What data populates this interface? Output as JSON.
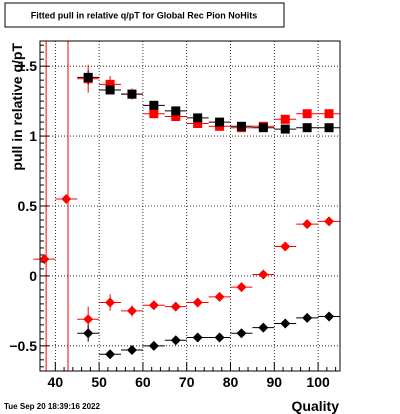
{
  "chart_data": {
    "type": "scatter",
    "title": "Fitted pull in relative q/pT for Global Rec Pion NoHits",
    "xlabel": "Quality",
    "ylabel": "pull in relative q/pT",
    "xlim": [
      36.5,
      105
    ],
    "ylim": [
      -0.68,
      1.68
    ],
    "xticks": [
      40,
      50,
      60,
      70,
      80,
      90,
      100
    ],
    "yticks": [
      -0.5,
      0,
      0.5,
      1,
      1.5
    ],
    "ytick_labels": [
      "−0.5",
      "0",
      "0.5",
      "1",
      "1.5"
    ],
    "grid": true,
    "legend": "none",
    "colors": {
      "red": "#ff0000",
      "black": "#000000"
    },
    "vertical_lines": [
      {
        "x": 37.9,
        "color": "#ff0000"
      },
      {
        "x": 42.9,
        "color": "#ff0000"
      }
    ],
    "series": [
      {
        "marker": "diamond",
        "color": "#ff0000",
        "points": [
          {
            "x": 37.5,
            "y": 0.12,
            "xerr": 2.5,
            "yerr": 0
          },
          {
            "x": 42.5,
            "y": 0.55,
            "xerr": 2.5,
            "yerr": 0
          },
          {
            "x": 47.5,
            "y": -0.31,
            "xerr": 2.5,
            "yerr": 0.09
          },
          {
            "x": 52.5,
            "y": -0.19,
            "xerr": 2.5,
            "yerr": 0.06
          },
          {
            "x": 57.5,
            "y": -0.25,
            "xerr": 2.5,
            "yerr": 0.04
          },
          {
            "x": 62.5,
            "y": -0.21,
            "xerr": 2.5,
            "yerr": 0.02
          },
          {
            "x": 67.5,
            "y": -0.22,
            "xerr": 2.5,
            "yerr": 0.02
          },
          {
            "x": 72.5,
            "y": -0.19,
            "xerr": 2.5,
            "yerr": 0.01
          },
          {
            "x": 77.5,
            "y": -0.15,
            "xerr": 2.5,
            "yerr": 0.01
          },
          {
            "x": 82.5,
            "y": -0.08,
            "xerr": 2.5,
            "yerr": 0.01
          },
          {
            "x": 87.5,
            "y": 0.01,
            "xerr": 2.5,
            "yerr": 0.01
          },
          {
            "x": 92.5,
            "y": 0.21,
            "xerr": 2.5,
            "yerr": 0.01
          },
          {
            "x": 97.5,
            "y": 0.37,
            "xerr": 2.5,
            "yerr": 0.01
          },
          {
            "x": 102.5,
            "y": 0.39,
            "xerr": 2.5,
            "yerr": 0.01
          }
        ]
      },
      {
        "marker": "diamond",
        "color": "#000000",
        "points": [
          {
            "x": 47.5,
            "y": -0.41,
            "xerr": 2.5,
            "yerr": 0.06
          },
          {
            "x": 52.5,
            "y": -0.56,
            "xerr": 2.5,
            "yerr": 0.03
          },
          {
            "x": 57.5,
            "y": -0.53,
            "xerr": 2.5,
            "yerr": 0.02
          },
          {
            "x": 62.5,
            "y": -0.5,
            "xerr": 2.5,
            "yerr": 0.02
          },
          {
            "x": 67.5,
            "y": -0.46,
            "xerr": 2.5,
            "yerr": 0.01
          },
          {
            "x": 72.5,
            "y": -0.44,
            "xerr": 2.5,
            "yerr": 0.01
          },
          {
            "x": 77.5,
            "y": -0.44,
            "xerr": 2.5,
            "yerr": 0.01
          },
          {
            "x": 82.5,
            "y": -0.41,
            "xerr": 2.5,
            "yerr": 0.01
          },
          {
            "x": 87.5,
            "y": -0.37,
            "xerr": 2.5,
            "yerr": 0.01
          },
          {
            "x": 92.5,
            "y": -0.34,
            "xerr": 2.5,
            "yerr": 0.01
          },
          {
            "x": 97.5,
            "y": -0.3,
            "xerr": 2.5,
            "yerr": 0.01
          },
          {
            "x": 102.5,
            "y": -0.29,
            "xerr": 2.5,
            "yerr": 0.01
          }
        ]
      },
      {
        "marker": "square",
        "color": "#ff0000",
        "points": [
          {
            "x": 47.5,
            "y": 1.41,
            "xerr": 2.5,
            "yerr": 0.1
          },
          {
            "x": 52.5,
            "y": 1.37,
            "xerr": 2.5,
            "yerr": 0.06
          },
          {
            "x": 57.5,
            "y": 1.3,
            "xerr": 2.5,
            "yerr": 0.04
          },
          {
            "x": 62.5,
            "y": 1.16,
            "xerr": 2.5,
            "yerr": 0.03
          },
          {
            "x": 67.5,
            "y": 1.14,
            "xerr": 2.5,
            "yerr": 0.02
          },
          {
            "x": 72.5,
            "y": 1.09,
            "xerr": 2.5,
            "yerr": 0.02
          },
          {
            "x": 77.5,
            "y": 1.07,
            "xerr": 2.5,
            "yerr": 0.01
          },
          {
            "x": 82.5,
            "y": 1.06,
            "xerr": 2.5,
            "yerr": 0.01
          },
          {
            "x": 87.5,
            "y": 1.07,
            "xerr": 2.5,
            "yerr": 0.01
          },
          {
            "x": 92.5,
            "y": 1.12,
            "xerr": 2.5,
            "yerr": 0.01
          },
          {
            "x": 97.5,
            "y": 1.16,
            "xerr": 2.5,
            "yerr": 0.01
          },
          {
            "x": 102.5,
            "y": 1.16,
            "xerr": 2.5,
            "yerr": 0.01
          }
        ]
      },
      {
        "marker": "square",
        "color": "#000000",
        "points": [
          {
            "x": 47.5,
            "y": 1.42,
            "xerr": 2.5,
            "yerr": 0.05
          },
          {
            "x": 52.5,
            "y": 1.33,
            "xerr": 2.5,
            "yerr": 0.03
          },
          {
            "x": 57.5,
            "y": 1.3,
            "xerr": 2.5,
            "yerr": 0.02
          },
          {
            "x": 62.5,
            "y": 1.22,
            "xerr": 2.5,
            "yerr": 0.02
          },
          {
            "x": 67.5,
            "y": 1.18,
            "xerr": 2.5,
            "yerr": 0.01
          },
          {
            "x": 72.5,
            "y": 1.13,
            "xerr": 2.5,
            "yerr": 0.01
          },
          {
            "x": 77.5,
            "y": 1.1,
            "xerr": 2.5,
            "yerr": 0.01
          },
          {
            "x": 82.5,
            "y": 1.07,
            "xerr": 2.5,
            "yerr": 0.01
          },
          {
            "x": 87.5,
            "y": 1.06,
            "xerr": 2.5,
            "yerr": 0.01
          },
          {
            "x": 92.5,
            "y": 1.05,
            "xerr": 2.5,
            "yerr": 0.01
          },
          {
            "x": 97.5,
            "y": 1.06,
            "xerr": 2.5,
            "yerr": 0.01
          },
          {
            "x": 102.5,
            "y": 1.06,
            "xerr": 2.5,
            "yerr": 0.01
          }
        ]
      }
    ]
  },
  "footer": {
    "timestamp": "Tue Sep 20 18:39:16 2022"
  }
}
